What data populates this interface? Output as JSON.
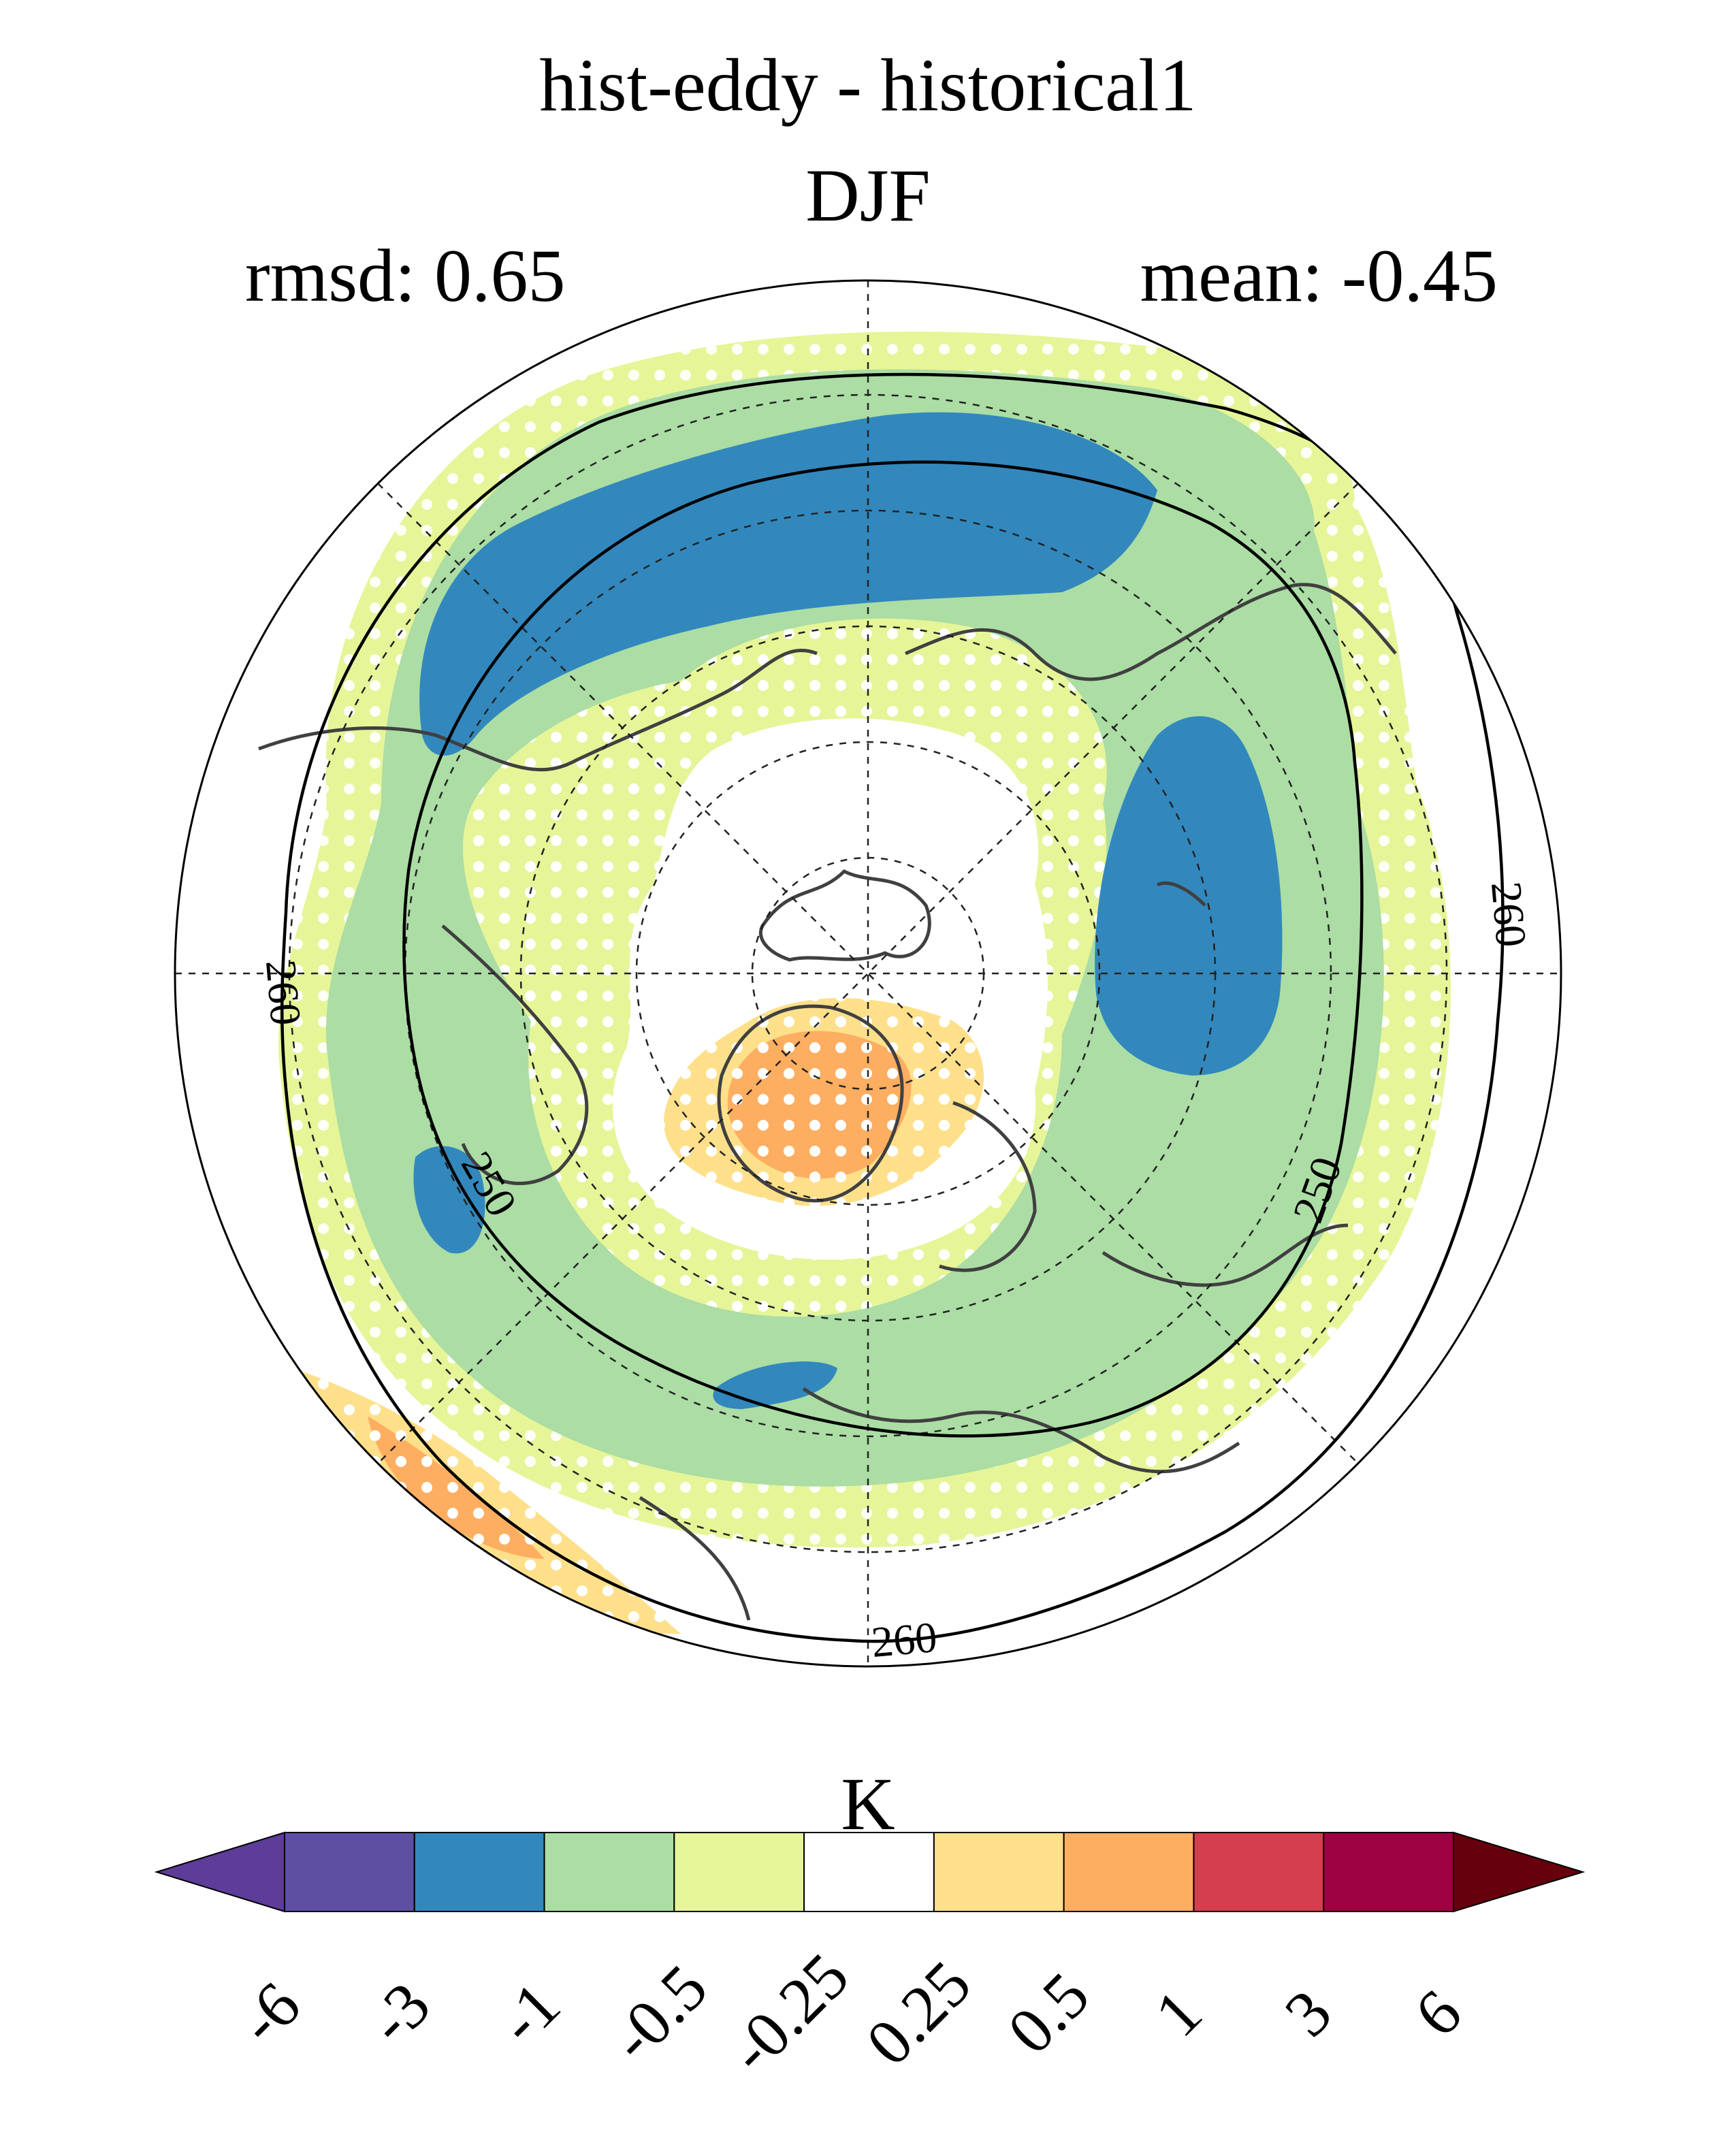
{
  "title": "hist-eddy - historical1",
  "season": "DJF",
  "rmsd_label": "rmsd: 0.65",
  "mean_label": "mean: -0.45",
  "chart_data": {
    "type": "heatmap",
    "projection": "north polar stereographic",
    "title": "hist-eddy - historical1",
    "subtitle": "DJF",
    "rmsd": 0.65,
    "mean": -0.45,
    "contour_labels": [
      "260",
      "250",
      "260",
      "250",
      "260"
    ],
    "colorbar": {
      "unit": "K",
      "ticks": [
        "-6",
        "-3",
        "-1",
        "-0.5",
        "-0.25",
        "0.25",
        "0.5",
        "1",
        "3",
        "6"
      ],
      "colors": [
        "#5e3c99",
        "#5e4fa2",
        "#3288bd",
        "#abdda4",
        "#e6f598",
        "#ffffff",
        "#fee08b",
        "#fdae61",
        "#d53e4f",
        "#9e0142",
        "#67000d"
      ],
      "extend": "both"
    },
    "stippling": true,
    "grid": true
  }
}
